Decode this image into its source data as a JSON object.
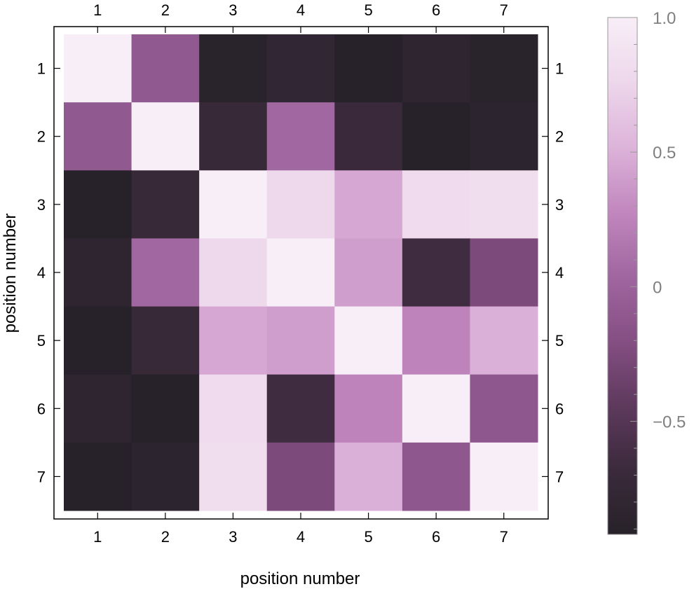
{
  "chart_data": {
    "type": "heatmap",
    "title": "",
    "xlabel": "position number",
    "ylabel": "position number",
    "x_categories": [
      "1",
      "2",
      "3",
      "4",
      "5",
      "6",
      "7"
    ],
    "y_categories": [
      "1",
      "2",
      "3",
      "4",
      "5",
      "6",
      "7"
    ],
    "values": [
      [
        1.0,
        -0.1,
        -0.9,
        -0.8,
        -0.92,
        -0.82,
        -0.9
      ],
      [
        -0.1,
        1.0,
        -0.72,
        0.05,
        -0.7,
        -0.93,
        -0.86
      ],
      [
        -0.93,
        -0.72,
        1.0,
        0.78,
        0.45,
        0.8,
        0.82
      ],
      [
        -0.82,
        0.05,
        0.78,
        1.0,
        0.4,
        -0.65,
        -0.25
      ],
      [
        -0.92,
        -0.72,
        0.45,
        0.4,
        1.0,
        0.25,
        0.5
      ],
      [
        -0.82,
        -0.93,
        0.8,
        -0.65,
        0.25,
        1.0,
        -0.12
      ],
      [
        -0.92,
        -0.86,
        0.82,
        -0.25,
        0.5,
        -0.12,
        1.0
      ]
    ],
    "colorbar": {
      "min": -0.92,
      "max": 1.0,
      "ticks": [
        1.0,
        0.5,
        0,
        -0.5
      ],
      "tick_labels": [
        "1.0",
        "0.5",
        "0",
        "−0.5"
      ],
      "colors": [
        "#272229",
        "#3b2a3c",
        "#5e3a5d",
        "#854f83",
        "#a066a0",
        "#c187be",
        "#ddb4da",
        "#edd7eb",
        "#f8eef7"
      ]
    },
    "grid": false,
    "legend": "colorbar-right"
  }
}
